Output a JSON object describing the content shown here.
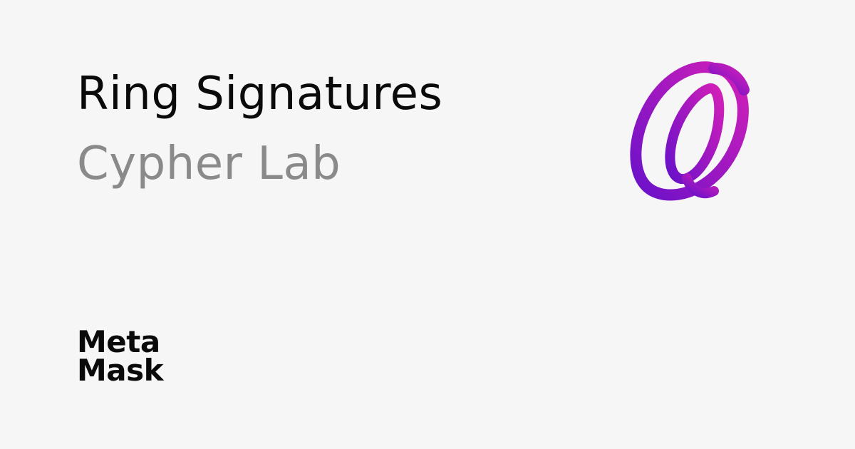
{
  "page": {
    "background_color": "#f6f6f6"
  },
  "header": {
    "title": "Ring Signatures",
    "subtitle": "Cypher Lab"
  },
  "colors": {
    "title_text": "#0a0a0a",
    "subtitle_text": "#8a8a8a",
    "ring_gradient_start": "#d21fb8",
    "ring_gradient_end": "#6a11c9"
  },
  "logo": {
    "icon": "ring-icon"
  },
  "brand": {
    "line1": "Meta",
    "line2": "Mask"
  }
}
